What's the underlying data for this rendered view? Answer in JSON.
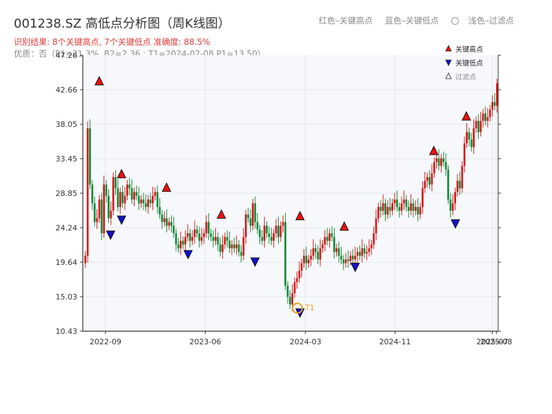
{
  "header": {
    "title": "001238.SZ 高低点分析图（周K线图）",
    "result": "识别结果: 8个关键高点, 7个关键低点  准确度: 88.5%",
    "quality": "优质：否（P1=31.3%, B2=2.36 ; T1=2024-02-08 P1=13.50）"
  },
  "top_legend": {
    "red_label": "红色–关键高点",
    "blue_label": "蓝色–关键低点",
    "light_label": "浅色–过滤点"
  },
  "chart_data": {
    "type": "candlestick",
    "ylim": [
      10.43,
      47.26
    ],
    "y_ticks": [
      "47.26",
      "42.66",
      "38.05",
      "33.45",
      "28.85",
      "24.24",
      "19.64",
      "15.03",
      "10.43"
    ],
    "x_ticks": [
      "2022-09",
      "2023-06",
      "2024-03",
      "2024-11",
      "2025-07",
      "2025-08"
    ],
    "legend": [
      "关键高点",
      "关键低点",
      "过滤点"
    ],
    "colors": {
      "up": "#d11a1a",
      "down": "#138a36",
      "high_marker": "#ee1111",
      "low_marker": "#1111cc",
      "t1_ring": "#f0a020",
      "plot_bg": "#f6f8fb"
    },
    "key_highs": [
      {
        "date": "2022-08",
        "price": 43.2
      },
      {
        "date": "2022-10",
        "price": 30.8
      },
      {
        "date": "2023-02",
        "price": 29.0
      },
      {
        "date": "2023-07",
        "price": 25.4
      },
      {
        "date": "2024-02",
        "price": 25.2
      },
      {
        "date": "2024-06",
        "price": 23.8
      },
      {
        "date": "2025-02",
        "price": 33.9
      },
      {
        "date": "2025-05",
        "price": 38.5
      }
    ],
    "key_lows": [
      {
        "date": "2022-09",
        "price": 23.9
      },
      {
        "date": "2022-10",
        "price": 25.9
      },
      {
        "date": "2023-04",
        "price": 21.3
      },
      {
        "date": "2023-10",
        "price": 20.3
      },
      {
        "date": "2024-02",
        "price": 13.5
      },
      {
        "date": "2024-07",
        "price": 19.6
      },
      {
        "date": "2025-04",
        "price": 25.4
      }
    ],
    "t1": {
      "label": "T1",
      "date": "2024-02-08",
      "price": 13.5
    },
    "weekly_closes": [
      20.5,
      37.5,
      30.0,
      27.5,
      25.0,
      25.5,
      28.0,
      23.5,
      30.0,
      28.5,
      25.5,
      26.5,
      31.0,
      29.5,
      27.0,
      29.0,
      27.5,
      28.5,
      30.0,
      29.5,
      28.0,
      29.0,
      28.5,
      27.5,
      28.0,
      27.5,
      27.0,
      28.0,
      27.5,
      28.5,
      29.0,
      27.0,
      26.0,
      25.0,
      25.5,
      24.5,
      25.0,
      24.5,
      23.5,
      22.0,
      21.5,
      22.5,
      22.0,
      23.0,
      23.5,
      22.5,
      23.0,
      24.0,
      23.5,
      22.5,
      23.0,
      23.5,
      25.0,
      23.5,
      23.0,
      22.5,
      23.0,
      22.0,
      21.0,
      22.0,
      23.0,
      22.5,
      21.5,
      22.0,
      21.5,
      22.0,
      21.0,
      20.5,
      23.0,
      26.0,
      25.5,
      24.5,
      27.5,
      25.0,
      24.0,
      23.0,
      22.5,
      24.5,
      23.5,
      23.0,
      22.5,
      23.5,
      24.5,
      23.0,
      24.5,
      25.0,
      16.5,
      15.0,
      14.0,
      15.5,
      17.0,
      17.5,
      18.5,
      19.5,
      20.5,
      19.5,
      20.0,
      20.5,
      21.5,
      21.0,
      20.0,
      21.5,
      22.0,
      23.0,
      22.5,
      23.5,
      23.0,
      21.0,
      21.5,
      20.5,
      20.0,
      19.5,
      20.0,
      19.8,
      20.5,
      20.0,
      20.5,
      21.0,
      20.5,
      21.5,
      20.8,
      21.0,
      21.5,
      22.0,
      23.5,
      25.5,
      27.0,
      26.5,
      27.5,
      26.0,
      27.0,
      26.5,
      27.5,
      28.0,
      27.0,
      26.5,
      27.5,
      28.0,
      27.0,
      26.5,
      27.5,
      26.5,
      27.0,
      26.0,
      27.0,
      29.5,
      30.5,
      31.0,
      30.0,
      31.5,
      33.0,
      33.5,
      32.5,
      33.5,
      33.0,
      32.0,
      28.0,
      26.5,
      27.5,
      29.0,
      30.5,
      29.5,
      32.5,
      35.5,
      37.0,
      36.0,
      35.0,
      37.5,
      38.5,
      37.0,
      38.5,
      39.5,
      38.5,
      39.0,
      40.0,
      41.0,
      40.5,
      43.5
    ]
  }
}
